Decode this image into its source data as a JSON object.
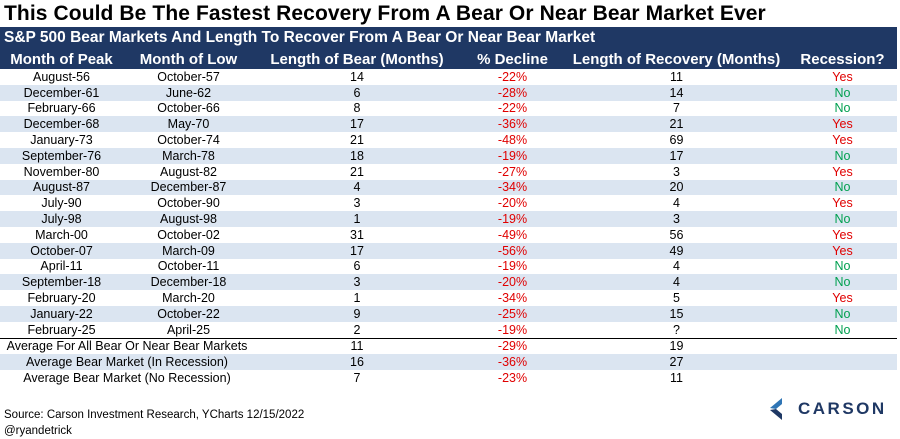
{
  "title": "This Could Be The Fastest Recovery From A Bear Or Near Bear Market Ever",
  "chart_data": {
    "type": "table",
    "subtitle": "S&P 500 Bear Markets And Length To Recover From A Bear Or Near Bear Market",
    "columns": [
      "Month of Peak",
      "Month of Low",
      "Length of Bear (Months)",
      "% Decline",
      "Length of Recovery (Months)",
      "Recession?"
    ],
    "rows": [
      [
        "August-56",
        "October-57",
        "14",
        "-22%",
        "11",
        "Yes"
      ],
      [
        "December-61",
        "June-62",
        "6",
        "-28%",
        "14",
        "No"
      ],
      [
        "February-66",
        "October-66",
        "8",
        "-22%",
        "7",
        "No"
      ],
      [
        "December-68",
        "May-70",
        "17",
        "-36%",
        "21",
        "Yes"
      ],
      [
        "January-73",
        "October-74",
        "21",
        "-48%",
        "69",
        "Yes"
      ],
      [
        "September-76",
        "March-78",
        "18",
        "-19%",
        "17",
        "No"
      ],
      [
        "November-80",
        "August-82",
        "21",
        "-27%",
        "3",
        "Yes"
      ],
      [
        "August-87",
        "December-87",
        "4",
        "-34%",
        "20",
        "No"
      ],
      [
        "July-90",
        "October-90",
        "3",
        "-20%",
        "4",
        "Yes"
      ],
      [
        "July-98",
        "August-98",
        "1",
        "-19%",
        "3",
        "No"
      ],
      [
        "March-00",
        "October-02",
        "31",
        "-49%",
        "56",
        "Yes"
      ],
      [
        "October-07",
        "March-09",
        "17",
        "-56%",
        "49",
        "Yes"
      ],
      [
        "April-11",
        "October-11",
        "6",
        "-19%",
        "4",
        "No"
      ],
      [
        "September-18",
        "December-18",
        "3",
        "-20%",
        "4",
        "No"
      ],
      [
        "February-20",
        "March-20",
        "1",
        "-34%",
        "5",
        "Yes"
      ],
      [
        "January-22",
        "October-22",
        "9",
        "-25%",
        "15",
        "No"
      ],
      [
        "February-25",
        "April-25",
        "2",
        "-19%",
        "?",
        "No"
      ]
    ],
    "averages": [
      [
        "Average For All Bear Or Near Bear Markets",
        "11",
        "-29%",
        "19"
      ],
      [
        "Average Bear Market (In Recession)",
        "16",
        "-36%",
        "27"
      ],
      [
        "Average Bear Market (No Recession)",
        "7",
        "-23%",
        "11"
      ]
    ]
  },
  "source": "Source: Carson Investment Research, YCharts  12/15/2022",
  "handle": "@ryandetrick",
  "logo_text": "CARSON",
  "colors": {
    "header_bg": "#1f3864",
    "alt_row": "#dbe5f1",
    "negative": "#e00000",
    "yes": "#e00000",
    "no": "#00a050"
  }
}
